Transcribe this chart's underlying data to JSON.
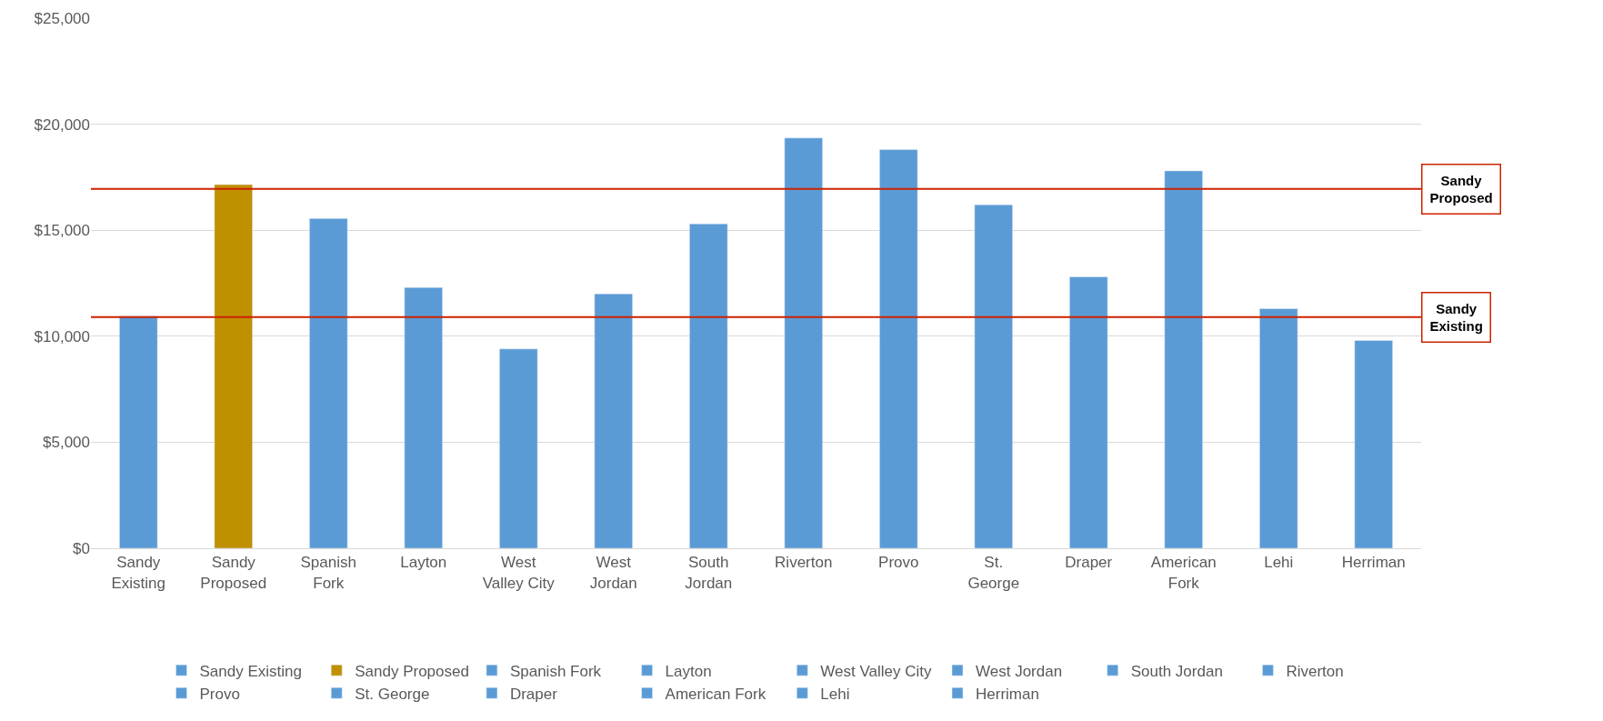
{
  "chart_data": {
    "type": "bar",
    "categories": [
      "Sandy Existing",
      "Sandy Proposed",
      "Spanish Fork",
      "Layton",
      "West Valley City",
      "West Jordan",
      "South Jordan",
      "Riverton",
      "Provo",
      "St. George",
      "Draper",
      "American Fork",
      "Lehi",
      "Herriman"
    ],
    "series": [
      {
        "name": "Sandy Existing",
        "color": "#5b9bd5",
        "values": [
          10950,
          null,
          null,
          null,
          null,
          null,
          null,
          null,
          null,
          null,
          null,
          null,
          null,
          null
        ]
      },
      {
        "name": "Sandy Proposed",
        "color": "#bf9000",
        "values": [
          null,
          17150,
          null,
          null,
          null,
          null,
          null,
          null,
          null,
          null,
          null,
          null,
          null,
          null
        ]
      },
      {
        "name": "Spanish Fork",
        "color": "#5b9bd5",
        "values": [
          null,
          null,
          15550,
          null,
          null,
          null,
          null,
          null,
          null,
          null,
          null,
          null,
          null,
          null
        ]
      },
      {
        "name": "Layton",
        "color": "#5b9bd5",
        "values": [
          null,
          null,
          null,
          12300,
          null,
          null,
          null,
          null,
          null,
          null,
          null,
          null,
          null,
          null
        ]
      },
      {
        "name": "West Valley City",
        "color": "#5b9bd5",
        "values": [
          null,
          null,
          null,
          null,
          9400,
          null,
          null,
          null,
          null,
          null,
          null,
          null,
          null,
          null
        ]
      },
      {
        "name": "West Jordan",
        "color": "#5b9bd5",
        "values": [
          null,
          null,
          null,
          null,
          null,
          12000,
          null,
          null,
          null,
          null,
          null,
          null,
          null,
          null
        ]
      },
      {
        "name": "South Jordan",
        "color": "#5b9bd5",
        "values": [
          null,
          null,
          null,
          null,
          null,
          null,
          15300,
          null,
          null,
          null,
          null,
          null,
          null,
          null
        ]
      },
      {
        "name": "Riverton",
        "color": "#5b9bd5",
        "values": [
          null,
          null,
          null,
          null,
          null,
          null,
          null,
          19350,
          null,
          null,
          null,
          null,
          null,
          null
        ]
      },
      {
        "name": "Provo",
        "color": "#5b9bd5",
        "values": [
          null,
          null,
          null,
          null,
          null,
          null,
          null,
          null,
          18800,
          null,
          null,
          null,
          null,
          null
        ]
      },
      {
        "name": "St. George",
        "color": "#5b9bd5",
        "values": [
          null,
          null,
          null,
          null,
          null,
          null,
          null,
          null,
          null,
          16200,
          null,
          null,
          null,
          null
        ]
      },
      {
        "name": "Draper",
        "color": "#5b9bd5",
        "values": [
          null,
          null,
          null,
          null,
          null,
          null,
          null,
          null,
          null,
          null,
          12800,
          null,
          null,
          null
        ]
      },
      {
        "name": "American Fork",
        "color": "#5b9bd5",
        "values": [
          null,
          null,
          null,
          null,
          null,
          null,
          null,
          null,
          null,
          null,
          null,
          17800,
          null,
          null
        ]
      },
      {
        "name": "Lehi",
        "color": "#5b9bd5",
        "values": [
          null,
          null,
          null,
          null,
          null,
          null,
          null,
          null,
          null,
          null,
          null,
          null,
          11300,
          null
        ]
      },
      {
        "name": "Herriman",
        "color": "#5b9bd5",
        "values": [
          null,
          null,
          null,
          null,
          null,
          null,
          null,
          null,
          null,
          null,
          null,
          null,
          null,
          9800
        ]
      }
    ],
    "ylim": [
      0,
      25000
    ],
    "yticks": [
      {
        "value": 0,
        "label": "$0"
      },
      {
        "value": 5000,
        "label": "$5,000"
      },
      {
        "value": 10000,
        "label": "$10,000"
      },
      {
        "value": 15000,
        "label": "$15,000"
      },
      {
        "value": 20000,
        "label": "$20,000"
      },
      {
        "value": 25000,
        "label": "$25,000"
      }
    ],
    "ref_lines": [
      {
        "axis": "y",
        "value": 16950,
        "label": "Sandy Proposed",
        "color": "#cc2200"
      },
      {
        "axis": "y",
        "value": 10900,
        "label": "Sandy Existing",
        "color": "#cc2200"
      }
    ],
    "grid": "y",
    "legend": "bottom"
  }
}
